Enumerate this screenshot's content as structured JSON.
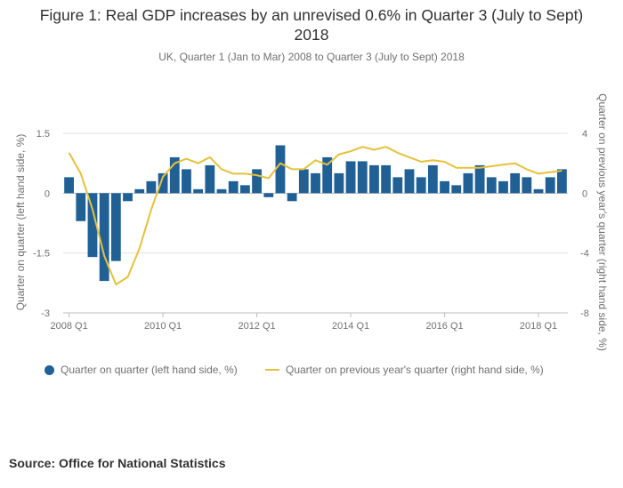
{
  "title": "Figure 1: Real GDP increases by an unrevised 0.6% in Quarter 3 (July to Sept) 2018",
  "subtitle": "UK, Quarter 1 (Jan to Mar) 2008 to Quarter 3 (July to Sept) 2018",
  "source": "Source: Office for National Statistics",
  "colors": {
    "bar": "#206095",
    "line": "#e5c13b",
    "grid": "#e0e0e0",
    "axis": "#bcbcbc"
  },
  "chart_data": {
    "type": "bar",
    "grid": true,
    "legend_position": "bottom-left",
    "categories": [
      "2008 Q1",
      "2008 Q2",
      "2008 Q3",
      "2008 Q4",
      "2009 Q1",
      "2009 Q2",
      "2009 Q3",
      "2009 Q4",
      "2010 Q1",
      "2010 Q2",
      "2010 Q3",
      "2010 Q4",
      "2011 Q1",
      "2011 Q2",
      "2011 Q3",
      "2011 Q4",
      "2012 Q1",
      "2012 Q2",
      "2012 Q3",
      "2012 Q4",
      "2013 Q1",
      "2013 Q2",
      "2013 Q3",
      "2013 Q4",
      "2014 Q1",
      "2014 Q2",
      "2014 Q3",
      "2014 Q4",
      "2015 Q1",
      "2015 Q2",
      "2015 Q3",
      "2015 Q4",
      "2016 Q1",
      "2016 Q2",
      "2016 Q3",
      "2016 Q4",
      "2017 Q1",
      "2017 Q2",
      "2017 Q3",
      "2017 Q4",
      "2018 Q1",
      "2018 Q2",
      "2018 Q3"
    ],
    "x_tick_labels": [
      "2008 Q1",
      "2010 Q1",
      "2012 Q1",
      "2014 Q1",
      "2016 Q1",
      "2018 Q1"
    ],
    "y_left": {
      "label": "Quarter on quarter (left hand side, %)",
      "ticks": [
        "1.5",
        "0",
        "-1.5",
        "-3"
      ],
      "range": [
        -3,
        1.5
      ]
    },
    "y_right": {
      "label": "Quarter on previous year's quarter (right hand side, %)",
      "ticks": [
        "4",
        "0",
        "-4",
        "-8"
      ],
      "range": [
        -8,
        4
      ]
    },
    "series": [
      {
        "name": "Quarter on quarter (left hand side, %)",
        "type": "bar",
        "axis": "left",
        "values": [
          0.4,
          -0.7,
          -1.6,
          -2.2,
          -1.7,
          -0.2,
          0.1,
          0.3,
          0.5,
          0.9,
          0.6,
          0.1,
          0.7,
          0.1,
          0.3,
          0.2,
          0.6,
          -0.1,
          1.2,
          -0.2,
          0.6,
          0.5,
          0.9,
          0.5,
          0.8,
          0.8,
          0.7,
          0.7,
          0.4,
          0.6,
          0.4,
          0.7,
          0.3,
          0.2,
          0.5,
          0.7,
          0.4,
          0.3,
          0.5,
          0.4,
          0.1,
          0.4,
          0.6
        ]
      },
      {
        "name": "Quarter on previous year's quarter (right hand side, %)",
        "type": "line",
        "axis": "right",
        "values": [
          2.7,
          1.3,
          -1.1,
          -4.2,
          -6.1,
          -5.6,
          -3.7,
          -1.1,
          1.1,
          2.0,
          2.3,
          2.0,
          2.4,
          1.6,
          1.3,
          1.3,
          1.2,
          1.0,
          2.0,
          1.6,
          1.6,
          2.2,
          1.9,
          2.6,
          2.8,
          3.1,
          2.9,
          3.1,
          2.7,
          2.4,
          2.1,
          2.2,
          2.1,
          1.7,
          1.7,
          1.7,
          1.8,
          1.9,
          2.0,
          1.6,
          1.3,
          1.4,
          1.5
        ]
      }
    ]
  }
}
